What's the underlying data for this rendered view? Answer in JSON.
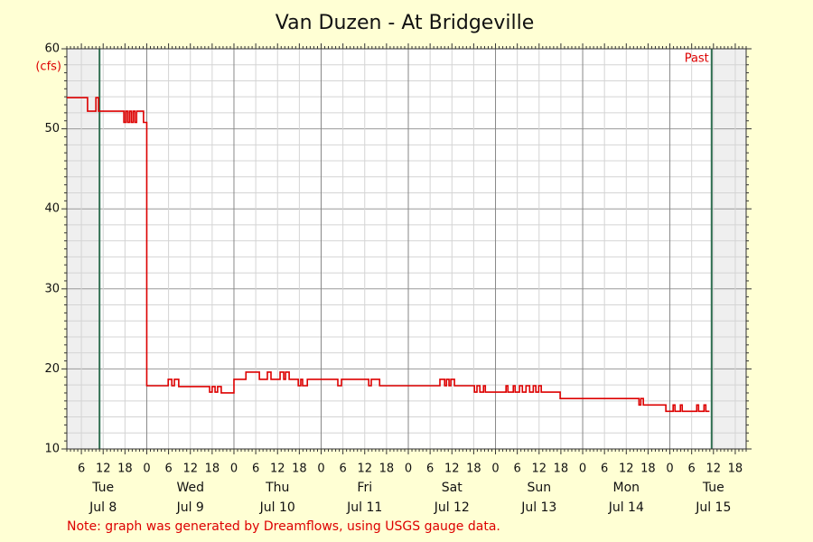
{
  "chart_data": {
    "type": "line",
    "title": "Van Duzen - At Bridgeville",
    "y_unit_label": "(cfs)",
    "note": "Note: graph was generated by Dreamflows, using USGS gauge data.",
    "past_label": "Past",
    "step": true,
    "color": "#dd0000",
    "xlim": [
      2,
      189
    ],
    "ylim": [
      10,
      60
    ],
    "yticks": [
      10,
      20,
      30,
      40,
      50,
      60
    ],
    "yminor": [
      12,
      14,
      16,
      18,
      22,
      24,
      26,
      28,
      32,
      34,
      36,
      38,
      42,
      44,
      46,
      48,
      52,
      54,
      56,
      58
    ],
    "xticks": [
      {
        "value": 6,
        "label": "6"
      },
      {
        "value": 12,
        "label": "12"
      },
      {
        "value": 18,
        "label": "18"
      },
      {
        "value": 24,
        "label": "0"
      },
      {
        "value": 30,
        "label": "6"
      },
      {
        "value": 36,
        "label": "12"
      },
      {
        "value": 42,
        "label": "18"
      },
      {
        "value": 48,
        "label": "0"
      },
      {
        "value": 54,
        "label": "6"
      },
      {
        "value": 60,
        "label": "12"
      },
      {
        "value": 66,
        "label": "18"
      },
      {
        "value": 72,
        "label": "0"
      },
      {
        "value": 78,
        "label": "6"
      },
      {
        "value": 84,
        "label": "12"
      },
      {
        "value": 90,
        "label": "18"
      },
      {
        "value": 96,
        "label": "0"
      },
      {
        "value": 102,
        "label": "6"
      },
      {
        "value": 108,
        "label": "12"
      },
      {
        "value": 114,
        "label": "18"
      },
      {
        "value": 120,
        "label": "0"
      },
      {
        "value": 126,
        "label": "6"
      },
      {
        "value": 132,
        "label": "12"
      },
      {
        "value": 138,
        "label": "18"
      },
      {
        "value": 144,
        "label": "0"
      },
      {
        "value": 150,
        "label": "6"
      },
      {
        "value": 156,
        "label": "12"
      },
      {
        "value": 162,
        "label": "18"
      },
      {
        "value": 168,
        "label": "0"
      },
      {
        "value": 174,
        "label": "6"
      },
      {
        "value": 180,
        "label": "12"
      },
      {
        "value": 186,
        "label": "18"
      }
    ],
    "days": [
      {
        "at": 12,
        "weekday": "Tue",
        "date": "Jul 8"
      },
      {
        "at": 36,
        "weekday": "Wed",
        "date": "Jul 9"
      },
      {
        "at": 60,
        "weekday": "Thu",
        "date": "Jul 10"
      },
      {
        "at": 84,
        "weekday": "Fri",
        "date": "Jul 11"
      },
      {
        "at": 108,
        "weekday": "Sat",
        "date": "Jul 12"
      },
      {
        "at": 132,
        "weekday": "Sun",
        "date": "Jul 13"
      },
      {
        "at": 156,
        "weekday": "Mon",
        "date": "Jul 14"
      },
      {
        "at": 180,
        "weekday": "Tue",
        "date": "Jul 15"
      }
    ],
    "shaded": [
      [
        2,
        11
      ],
      [
        179.5,
        189
      ]
    ],
    "markers": [
      11,
      179.5
    ],
    "marker_color": "#2e6e50",
    "x": [
      2.0,
      7.7,
      10.0,
      10.7,
      17.7,
      18.2,
      18.7,
      19.2,
      19.7,
      20.2,
      20.7,
      21.2,
      23.1,
      24.0,
      29.9,
      30.9,
      31.6,
      32.8,
      41.3,
      42.0,
      42.8,
      43.5,
      44.5,
      48.0,
      51.3,
      55.0,
      57.2,
      58.2,
      60.7,
      61.7,
      62.2,
      63.2,
      65.7,
      66.4,
      66.9,
      68.2,
      76.6,
      77.6,
      85.1,
      85.8,
      88.1,
      104.7,
      106.0,
      106.5,
      107.2,
      107.7,
      108.7,
      114.2,
      114.9,
      115.7,
      116.7,
      117.2,
      122.9,
      123.4,
      124.9,
      125.4,
      126.6,
      127.4,
      128.4,
      129.4,
      130.4,
      131.1,
      131.9,
      132.6,
      137.8,
      159.5,
      160.0,
      160.7,
      166.9,
      168.9,
      169.4,
      170.9,
      171.4,
      175.4,
      175.9,
      177.4,
      177.9,
      178.9
    ],
    "values": [
      53.9,
      52.2,
      53.9,
      52.2,
      50.8,
      52.2,
      50.8,
      52.2,
      50.8,
      52.2,
      50.8,
      52.2,
      50.8,
      17.9,
      18.7,
      17.9,
      18.7,
      17.8,
      17.1,
      17.8,
      17.1,
      17.8,
      17.0,
      18.7,
      19.6,
      18.7,
      19.6,
      18.7,
      19.6,
      18.7,
      19.6,
      18.7,
      17.9,
      18.7,
      17.9,
      18.7,
      17.9,
      18.7,
      17.9,
      18.7,
      17.9,
      18.7,
      17.9,
      18.7,
      17.9,
      18.7,
      17.9,
      17.1,
      17.9,
      17.1,
      17.9,
      17.1,
      17.9,
      17.1,
      17.9,
      17.1,
      17.9,
      17.1,
      17.9,
      17.1,
      17.9,
      17.1,
      17.9,
      17.1,
      16.3,
      15.5,
      16.3,
      15.5,
      14.7,
      15.5,
      14.7,
      15.5,
      14.7,
      15.5,
      14.7,
      15.5,
      14.7,
      14.7
    ]
  }
}
